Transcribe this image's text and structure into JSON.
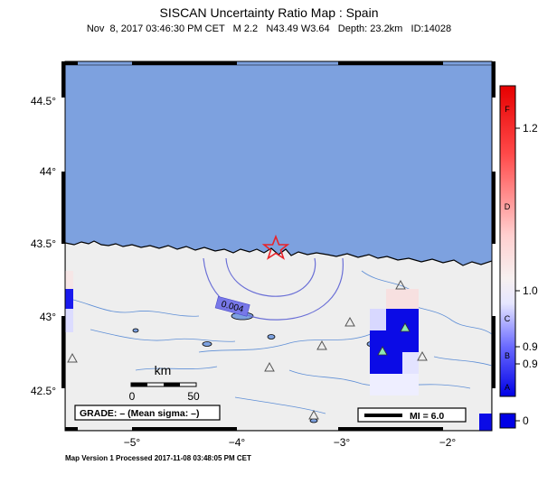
{
  "header": {
    "title": "SISCAN Uncertainty Ratio Map : Spain",
    "subtitle": "Nov  8, 2017 03:46:30 PM CET   M 2.2   N43.49 W3.64   Depth: 23.2km   ID:14028"
  },
  "map": {
    "lat_ticks": [
      "44.5°",
      "44°",
      "43.5°",
      "43°",
      "42.5°"
    ],
    "lon_ticks": [
      "−5°",
      "−4°",
      "−3°",
      "−2°"
    ],
    "contour_label": "0.004",
    "scale_bar": {
      "unit": "km",
      "start": "0",
      "end": "50"
    },
    "grade_box": "GRADE: – (Mean sigma: –)",
    "mi_legend": "MI = 6.0",
    "colors": {
      "sea": "#7da1df",
      "land": "#eeeeee",
      "epicenter": "#e8232a",
      "contour": "#6a6fd6"
    },
    "epicenter_icon": "star-icon",
    "station_icon": "triangle-icon"
  },
  "colorbar": {
    "grade_letters": [
      "F",
      "D",
      "C",
      "B",
      "A"
    ],
    "value_labels": [
      "1.2",
      "1.0",
      "0.9",
      "0.9",
      "0"
    ]
  },
  "footer": {
    "text": "Map Version 1 Processed 2017-11-08 03:48:05 PM CET"
  }
}
